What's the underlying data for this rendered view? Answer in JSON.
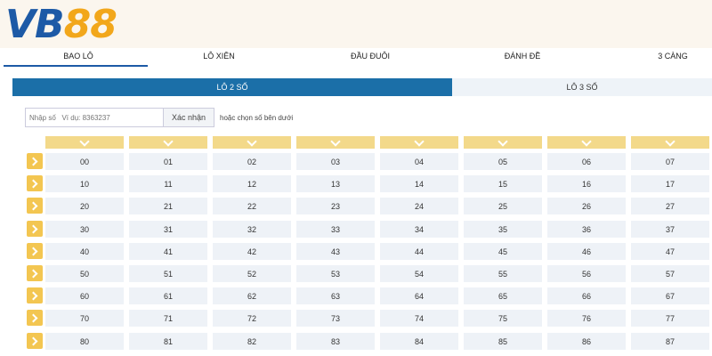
{
  "brand": {
    "logo_text_a": "VB",
    "logo_text_b": "88",
    "primary_color": "#1d5aa6",
    "accent_color": "#f2a71b"
  },
  "nav": {
    "items": [
      "BAO LÔ",
      "LÔ XIÊN",
      "ĐẦU ĐUÔI",
      "ĐÁNH ĐỀ",
      "3 CÀNG"
    ],
    "active": "BAO LÔ"
  },
  "subtabs": {
    "items": [
      "LÔ 2 SỐ",
      "LÔ 3 SỐ"
    ],
    "active": "LÔ 2 SỐ"
  },
  "input": {
    "label": "Nhập số",
    "placeholder": "Nhập số   Ví dụ: 8363237",
    "confirm_label": "Xác nhận",
    "hint": "hoặc chọn số bên dưới"
  },
  "grid": {
    "rows": [
      [
        "00",
        "01",
        "02",
        "03",
        "04",
        "05",
        "06",
        "07"
      ],
      [
        "10",
        "11",
        "12",
        "13",
        "14",
        "15",
        "16",
        "17"
      ],
      [
        "20",
        "21",
        "22",
        "23",
        "24",
        "25",
        "26",
        "27"
      ],
      [
        "30",
        "31",
        "32",
        "33",
        "34",
        "35",
        "36",
        "37"
      ],
      [
        "40",
        "41",
        "42",
        "43",
        "44",
        "45",
        "46",
        "47"
      ],
      [
        "50",
        "51",
        "52",
        "53",
        "54",
        "55",
        "56",
        "57"
      ],
      [
        "60",
        "61",
        "62",
        "63",
        "64",
        "65",
        "66",
        "67"
      ],
      [
        "70",
        "71",
        "72",
        "73",
        "74",
        "75",
        "76",
        "77"
      ],
      [
        "80",
        "81",
        "82",
        "83",
        "84",
        "85",
        "86",
        "87"
      ]
    ],
    "column_icon": "chevron-down-icon",
    "row_icon": "chevron-right-icon"
  }
}
